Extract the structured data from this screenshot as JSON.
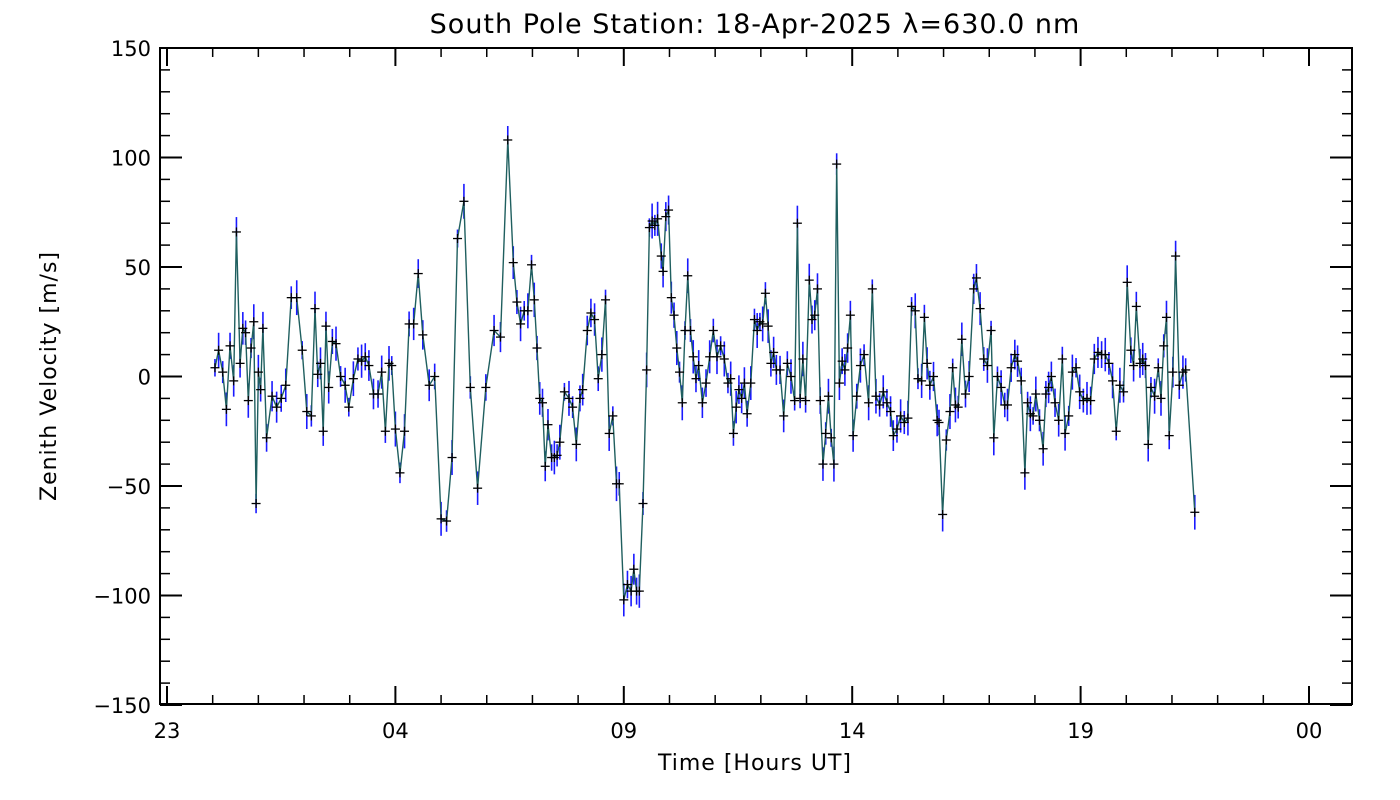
{
  "chart_data": {
    "type": "line",
    "title": "South Pole Station: 18-Apr-2025 λ=630.0 nm",
    "xlabel": "Time [Hours UT]",
    "ylabel": "Zenith Velocity [m/s]",
    "xlim": [
      23,
      48
    ],
    "ylim": [
      -150,
      150
    ],
    "x_ticks": [
      23,
      28,
      33,
      38,
      43,
      48
    ],
    "x_tick_labels": [
      "23",
      "04",
      "09",
      "14",
      "19",
      "00"
    ],
    "y_ticks": [
      -150,
      -100,
      -50,
      0,
      50,
      100,
      150
    ],
    "y_tick_labels": [
      "−150",
      "−100",
      "−50",
      "0",
      "50",
      "100",
      "150"
    ],
    "grid": false,
    "legend": "none",
    "colors": {
      "line": "#1f5f5f",
      "error_bars": "#1a1aff",
      "markers": "#000000"
    },
    "series": [
      {
        "points": [
          [
            24.05,
            4
          ],
          [
            24.13,
            12
          ],
          [
            24.22,
            2
          ],
          [
            24.3,
            -15
          ],
          [
            24.38,
            14
          ],
          [
            24.46,
            -2
          ],
          [
            24.52,
            66
          ],
          [
            24.6,
            6
          ],
          [
            24.66,
            22
          ],
          [
            24.72,
            20
          ],
          [
            24.78,
            -11
          ],
          [
            24.84,
            13
          ],
          [
            24.9,
            25
          ],
          [
            24.95,
            -58
          ],
          [
            25.0,
            2
          ],
          [
            25.05,
            -6
          ],
          [
            25.1,
            22
          ],
          [
            25.18,
            -28
          ],
          [
            25.3,
            -9
          ],
          [
            25.4,
            -14
          ],
          [
            25.5,
            -10
          ],
          [
            25.6,
            -4
          ],
          [
            25.72,
            36
          ],
          [
            25.84,
            36
          ],
          [
            25.96,
            12
          ],
          [
            26.06,
            -16
          ],
          [
            26.16,
            -18
          ],
          [
            26.24,
            31
          ],
          [
            26.3,
            1
          ],
          [
            26.36,
            6
          ],
          [
            26.42,
            -25
          ],
          [
            26.48,
            23
          ],
          [
            26.54,
            -5
          ],
          [
            26.62,
            16
          ],
          [
            26.7,
            15
          ],
          [
            26.8,
            0
          ],
          [
            26.9,
            -4
          ],
          [
            26.98,
            -14
          ],
          [
            27.08,
            -1
          ],
          [
            27.18,
            8
          ],
          [
            27.26,
            7
          ],
          [
            27.34,
            9
          ],
          [
            27.42,
            5
          ],
          [
            27.52,
            -8
          ],
          [
            27.62,
            -8
          ],
          [
            27.7,
            2
          ],
          [
            27.78,
            -25
          ],
          [
            27.86,
            6
          ],
          [
            27.92,
            5
          ],
          [
            28.0,
            -24
          ],
          [
            28.1,
            -44
          ],
          [
            28.2,
            -25
          ],
          [
            28.3,
            24
          ],
          [
            28.4,
            24
          ],
          [
            28.5,
            47
          ],
          [
            28.6,
            19
          ],
          [
            28.74,
            -4
          ],
          [
            28.86,
            0
          ],
          [
            29.0,
            -65
          ],
          [
            29.12,
            -66
          ],
          [
            29.24,
            -37
          ],
          [
            29.36,
            63
          ],
          [
            29.5,
            80
          ],
          [
            29.64,
            -5
          ],
          [
            29.8,
            -51
          ],
          [
            29.98,
            -5
          ],
          [
            30.16,
            21
          ],
          [
            30.3,
            18
          ],
          [
            30.46,
            108
          ],
          [
            30.58,
            52
          ],
          [
            30.66,
            34
          ],
          [
            30.74,
            24
          ],
          [
            30.82,
            30
          ],
          [
            30.9,
            30
          ],
          [
            30.98,
            51
          ],
          [
            31.04,
            35
          ],
          [
            31.1,
            13
          ],
          [
            31.16,
            -10
          ],
          [
            31.22,
            -12
          ],
          [
            31.28,
            -41
          ],
          [
            31.34,
            -22
          ],
          [
            31.42,
            -37
          ],
          [
            31.48,
            -37
          ],
          [
            31.54,
            -36
          ],
          [
            31.6,
            -30
          ],
          [
            31.7,
            -7
          ],
          [
            31.8,
            -10
          ],
          [
            31.88,
            -14
          ],
          [
            31.96,
            -31
          ],
          [
            32.04,
            -10
          ],
          [
            32.1,
            -6
          ],
          [
            32.2,
            21
          ],
          [
            32.28,
            29
          ],
          [
            32.36,
            26
          ],
          [
            32.44,
            -1
          ],
          [
            32.52,
            10
          ],
          [
            32.6,
            35
          ],
          [
            32.68,
            -26
          ],
          [
            32.76,
            -18
          ],
          [
            32.84,
            -49
          ],
          [
            32.9,
            -49
          ],
          [
            33.0,
            -102
          ],
          [
            33.08,
            -95
          ],
          [
            33.16,
            -98
          ],
          [
            33.22,
            -88
          ],
          [
            33.28,
            -98
          ],
          [
            33.34,
            -98
          ],
          [
            33.42,
            -58
          ],
          [
            33.5,
            3
          ],
          [
            33.56,
            68
          ],
          [
            33.62,
            71
          ],
          [
            33.68,
            69
          ],
          [
            33.74,
            72
          ],
          [
            33.82,
            55
          ],
          [
            33.86,
            48
          ],
          [
            33.92,
            73
          ],
          [
            33.98,
            76
          ],
          [
            34.04,
            36
          ],
          [
            34.1,
            28
          ],
          [
            34.16,
            13
          ],
          [
            34.22,
            2
          ],
          [
            34.28,
            -12
          ],
          [
            34.34,
            21
          ],
          [
            34.4,
            46
          ],
          [
            34.46,
            21
          ],
          [
            34.52,
            9
          ],
          [
            34.58,
            -1
          ],
          [
            34.64,
            5
          ],
          [
            34.72,
            -12
          ],
          [
            34.8,
            -3
          ],
          [
            34.88,
            9
          ],
          [
            34.96,
            21
          ],
          [
            35.04,
            9
          ],
          [
            35.12,
            14
          ],
          [
            35.2,
            8
          ],
          [
            35.28,
            -3
          ],
          [
            35.34,
            -1
          ],
          [
            35.4,
            -26
          ],
          [
            35.46,
            -14
          ],
          [
            35.52,
            -6
          ],
          [
            35.58,
            -10
          ],
          [
            35.64,
            -3
          ],
          [
            35.7,
            -17
          ],
          [
            35.78,
            -3
          ],
          [
            35.86,
            26
          ],
          [
            35.92,
            21
          ],
          [
            35.98,
            25
          ],
          [
            36.04,
            24
          ],
          [
            36.1,
            38
          ],
          [
            36.16,
            23
          ],
          [
            36.22,
            6
          ],
          [
            36.28,
            11
          ],
          [
            36.34,
            3
          ],
          [
            36.42,
            3
          ],
          [
            36.5,
            -18
          ],
          [
            36.58,
            6
          ],
          [
            36.66,
            0
          ],
          [
            36.74,
            -11
          ],
          [
            36.8,
            70
          ],
          [
            36.86,
            -10
          ],
          [
            36.92,
            8
          ],
          [
            36.98,
            -11
          ],
          [
            37.06,
            44
          ],
          [
            37.12,
            26
          ],
          [
            37.18,
            28
          ],
          [
            37.24,
            40
          ],
          [
            37.3,
            -11
          ],
          [
            37.36,
            -40
          ],
          [
            37.42,
            -26
          ],
          [
            37.48,
            -9
          ],
          [
            37.54,
            -28
          ],
          [
            37.6,
            -40
          ],
          [
            37.66,
            97
          ],
          [
            37.72,
            -3
          ],
          [
            37.78,
            7
          ],
          [
            37.84,
            3
          ],
          [
            37.9,
            13
          ],
          [
            37.96,
            28
          ],
          [
            38.02,
            -27
          ],
          [
            38.1,
            -9
          ],
          [
            38.18,
            5
          ],
          [
            38.26,
            10
          ],
          [
            38.36,
            -12
          ],
          [
            38.44,
            40
          ],
          [
            38.52,
            -9
          ],
          [
            38.6,
            -13
          ],
          [
            38.68,
            -7
          ],
          [
            38.76,
            -12
          ],
          [
            38.84,
            -16
          ],
          [
            38.9,
            -27
          ],
          [
            38.98,
            -24
          ],
          [
            39.06,
            -18
          ],
          [
            39.14,
            -21
          ],
          [
            39.22,
            -19
          ],
          [
            39.3,
            32
          ],
          [
            39.38,
            30
          ],
          [
            39.44,
            -1
          ],
          [
            39.52,
            -2
          ],
          [
            39.58,
            27
          ],
          [
            39.64,
            6
          ],
          [
            39.7,
            -4
          ],
          [
            39.78,
            0
          ],
          [
            39.86,
            -20
          ],
          [
            39.9,
            -21
          ],
          [
            39.98,
            -63
          ],
          [
            40.06,
            -29
          ],
          [
            40.14,
            -16
          ],
          [
            40.2,
            4
          ],
          [
            40.26,
            -13
          ],
          [
            40.32,
            -14
          ],
          [
            40.4,
            17
          ],
          [
            40.48,
            -8
          ],
          [
            40.56,
            0
          ],
          [
            40.66,
            40
          ],
          [
            40.72,
            45
          ],
          [
            40.8,
            31
          ],
          [
            40.88,
            8
          ],
          [
            40.96,
            5
          ],
          [
            41.04,
            21
          ],
          [
            41.1,
            -28
          ],
          [
            41.18,
            0
          ],
          [
            41.26,
            -5
          ],
          [
            41.34,
            -13
          ],
          [
            41.4,
            -13
          ],
          [
            41.48,
            4
          ],
          [
            41.56,
            10
          ],
          [
            41.62,
            7
          ],
          [
            41.7,
            -2
          ],
          [
            41.78,
            -44
          ],
          [
            41.84,
            -12
          ],
          [
            41.9,
            -17
          ],
          [
            41.96,
            -18
          ],
          [
            42.02,
            -8
          ],
          [
            42.1,
            -20
          ],
          [
            42.18,
            -33
          ],
          [
            42.24,
            -8
          ],
          [
            42.3,
            -5
          ],
          [
            42.36,
            0
          ],
          [
            42.44,
            -12
          ],
          [
            42.52,
            -20
          ],
          [
            42.6,
            8
          ],
          [
            42.66,
            -26
          ],
          [
            42.74,
            -18
          ],
          [
            42.82,
            2
          ],
          [
            42.9,
            4
          ],
          [
            42.98,
            -7
          ],
          [
            43.06,
            -11
          ],
          [
            43.14,
            -10
          ],
          [
            43.22,
            -11
          ],
          [
            43.3,
            8
          ],
          [
            43.38,
            11
          ],
          [
            43.46,
            10
          ],
          [
            43.54,
            10
          ],
          [
            43.62,
            6
          ],
          [
            43.7,
            -2
          ],
          [
            43.78,
            -25
          ],
          [
            43.86,
            -4
          ],
          [
            43.94,
            -7
          ],
          [
            44.02,
            43
          ],
          [
            44.1,
            12
          ],
          [
            44.16,
            5
          ],
          [
            44.22,
            32
          ],
          [
            44.3,
            6
          ],
          [
            44.36,
            8
          ],
          [
            44.42,
            5
          ],
          [
            44.48,
            -31
          ],
          [
            44.54,
            -5
          ],
          [
            44.62,
            -9
          ],
          [
            44.7,
            4
          ],
          [
            44.76,
            -10
          ],
          [
            44.82,
            14
          ],
          [
            44.88,
            27
          ],
          [
            44.94,
            -27
          ],
          [
            45.02,
            2
          ],
          [
            45.08,
            55
          ],
          [
            45.16,
            -4
          ],
          [
            45.24,
            2
          ],
          [
            45.3,
            3
          ],
          [
            45.5,
            -62
          ]
        ]
      }
    ]
  }
}
